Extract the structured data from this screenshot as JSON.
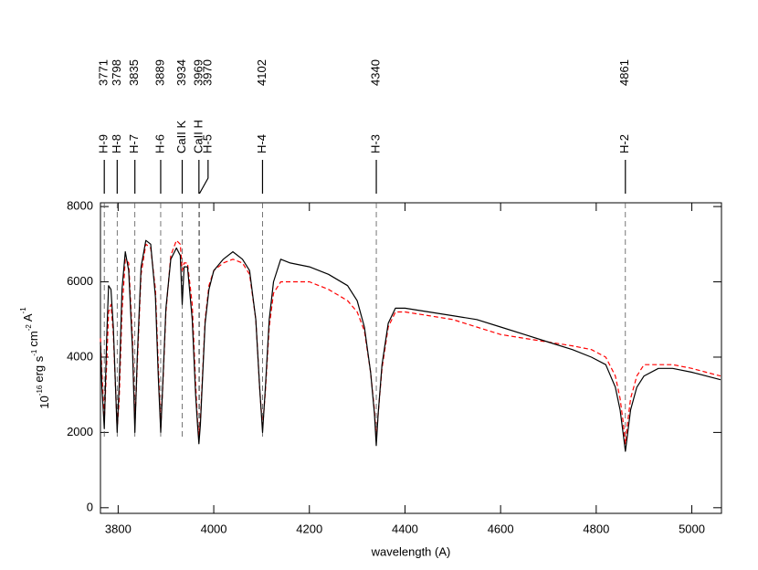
{
  "chart_data": {
    "type": "line",
    "x_label": "wavelength (A)",
    "y_label": {
      "base": [
        "10",
        "erg s",
        "cm",
        "A"
      ],
      "sup": [
        "-16",
        "-1",
        "-2",
        "-1"
      ]
    },
    "xlim": [
      3763,
      5062
    ],
    "ylim": [
      -150,
      8100
    ],
    "xticks": [
      3800,
      4000,
      4200,
      4400,
      4600,
      4800,
      5000
    ],
    "yticks": [
      0,
      2000,
      4000,
      6000,
      8000
    ],
    "x": [
      3763,
      3766,
      3771,
      3776,
      3780,
      3785,
      3790,
      3795,
      3798,
      3802,
      3808,
      3815,
      3822,
      3830,
      3835,
      3840,
      3848,
      3858,
      3868,
      3878,
      3884,
      3889,
      3894,
      3900,
      3910,
      3922,
      3930,
      3934,
      3938,
      3945,
      3955,
      3962,
      3966,
      3969,
      3972,
      3976,
      3982,
      3990,
      4000,
      4020,
      4040,
      4060,
      4075,
      4088,
      4096,
      4102,
      4108,
      4116,
      4125,
      4140,
      4160,
      4200,
      4240,
      4280,
      4300,
      4315,
      4328,
      4336,
      4340,
      4344,
      4352,
      4365,
      4380,
      4400,
      4450,
      4500,
      4550,
      4600,
      4650,
      4700,
      4750,
      4790,
      4820,
      4840,
      4850,
      4856,
      4861,
      4866,
      4872,
      4885,
      4900,
      4930,
      4960,
      5000,
      5030,
      5060
    ],
    "series": [
      {
        "color": "#ff0000",
        "dash": true,
        "values": [
          4500,
          3600,
          2300,
          3800,
          5200,
          5400,
          4600,
          3000,
          2100,
          2800,
          5200,
          6600,
          6500,
          4500,
          2200,
          3800,
          6200,
          7000,
          6900,
          5800,
          3800,
          2100,
          3400,
          5200,
          6700,
          7100,
          7000,
          6300,
          6500,
          6500,
          5400,
          3300,
          2300,
          1900,
          2300,
          3400,
          5000,
          5900,
          6300,
          6500,
          6600,
          6500,
          6200,
          5000,
          3200,
          2100,
          3100,
          4800,
          5700,
          6000,
          6000,
          6000,
          5800,
          5500,
          5200,
          4700,
          3600,
          2600,
          1800,
          2500,
          3700,
          4800,
          5200,
          5200,
          5100,
          5000,
          4800,
          4600,
          4500,
          4400,
          4300,
          4200,
          4000,
          3500,
          2900,
          2300,
          1700,
          2300,
          2900,
          3500,
          3800,
          3800,
          3800,
          3700,
          3600,
          3500
        ]
      },
      {
        "color": "#000000",
        "dash": false,
        "values": [
          4400,
          3200,
          2100,
          4500,
          5900,
          5800,
          4800,
          3000,
          2000,
          3200,
          5800,
          6800,
          6300,
          4200,
          2000,
          4000,
          6400,
          7100,
          7000,
          5600,
          3500,
          2000,
          3500,
          5300,
          6600,
          6900,
          6700,
          5400,
          6400,
          6400,
          5000,
          3000,
          2200,
          1700,
          2200,
          3300,
          4900,
          5800,
          6300,
          6600,
          6800,
          6600,
          6300,
          5000,
          3200,
          2000,
          3200,
          5000,
          6000,
          6600,
          6500,
          6400,
          6200,
          5900,
          5500,
          4800,
          3600,
          2500,
          1650,
          2500,
          3800,
          4900,
          5300,
          5300,
          5200,
          5100,
          5000,
          4800,
          4600,
          4400,
          4200,
          4000,
          3800,
          3200,
          2600,
          2000,
          1500,
          2000,
          2600,
          3200,
          3500,
          3700,
          3700,
          3600,
          3500,
          3400
        ]
      }
    ],
    "lines": [
      {
        "wavelength": 3771,
        "label": "H-9"
      },
      {
        "wavelength": 3798,
        "label": "H-8"
      },
      {
        "wavelength": 3835,
        "label": "H-7"
      },
      {
        "wavelength": 3889,
        "label": "H-6"
      },
      {
        "wavelength": 3934,
        "label": "CaII K"
      },
      {
        "wavelength": 3969,
        "label": "CaII H"
      },
      {
        "wavelength": 3970,
        "label": "H-5"
      },
      {
        "wavelength": 4102,
        "label": "H-4"
      },
      {
        "wavelength": 4340,
        "label": "H-3"
      },
      {
        "wavelength": 4861,
        "label": "H-2"
      }
    ]
  }
}
